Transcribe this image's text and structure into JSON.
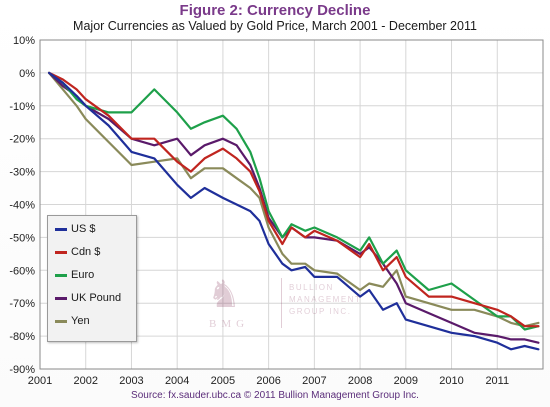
{
  "chart_data": {
    "type": "line",
    "title": "Figure 2: Currency Decline",
    "subtitle": "Major Currencies as Valued by Gold Price, March 2001 - December 2011",
    "source": "Source: fx.sauder.ubc.ca © 2011 Bullion Management Group Inc.",
    "xlim": [
      2001,
      2012
    ],
    "ylim": [
      -90,
      10
    ],
    "x_ticks": [
      "2001",
      "2002",
      "2003",
      "2004",
      "2005",
      "2006",
      "2007",
      "2008",
      "2009",
      "2010",
      "2011"
    ],
    "y_ticks": [
      "10%",
      "0%",
      "-10%",
      "-20%",
      "-30%",
      "-40%",
      "-50%",
      "-60%",
      "-70%",
      "-80%",
      "-90%"
    ],
    "grid": true,
    "legend_position": "lower-left",
    "series": [
      {
        "name": "US $",
        "color": "#1f2f9a",
        "x": [
          2001.2,
          2001.5,
          2001.8,
          2002.0,
          2002.5,
          2003.0,
          2003.5,
          2004.0,
          2004.3,
          2004.6,
          2005.0,
          2005.3,
          2005.6,
          2005.8,
          2006.0,
          2006.3,
          2006.5,
          2006.8,
          2007.0,
          2007.5,
          2008.0,
          2008.2,
          2008.5,
          2008.8,
          2009.0,
          2009.5,
          2010.0,
          2010.5,
          2011.0,
          2011.3,
          2011.6,
          2011.9
        ],
        "y": [
          0,
          -3,
          -7,
          -10,
          -16,
          -24,
          -26,
          -34,
          -38,
          -35,
          -38,
          -40,
          -42,
          -45,
          -52,
          -58,
          -60,
          -59,
          -62,
          -62,
          -68,
          -66,
          -72,
          -70,
          -75,
          -77,
          -79,
          -80,
          -82,
          -84,
          -83,
          -84
        ]
      },
      {
        "name": "Cdn $",
        "color": "#c0251f",
        "x": [
          2001.2,
          2001.5,
          2001.8,
          2002.0,
          2002.5,
          2003.0,
          2003.5,
          2004.0,
          2004.3,
          2004.6,
          2005.0,
          2005.3,
          2005.6,
          2005.8,
          2006.0,
          2006.3,
          2006.5,
          2006.8,
          2007.0,
          2007.5,
          2008.0,
          2008.2,
          2008.5,
          2008.8,
          2009.0,
          2009.5,
          2010.0,
          2010.5,
          2011.0,
          2011.3,
          2011.6,
          2011.9
        ],
        "y": [
          0,
          -2,
          -5,
          -8,
          -13,
          -20,
          -20,
          -27,
          -30,
          -26,
          -23,
          -26,
          -30,
          -36,
          -45,
          -52,
          -47,
          -50,
          -48,
          -51,
          -56,
          -52,
          -60,
          -56,
          -62,
          -68,
          -68,
          -70,
          -72,
          -74,
          -77,
          -77
        ]
      },
      {
        "name": "Euro",
        "color": "#1ea04a",
        "x": [
          2001.2,
          2001.5,
          2001.8,
          2002.0,
          2002.5,
          2003.0,
          2003.5,
          2004.0,
          2004.3,
          2004.6,
          2005.0,
          2005.3,
          2005.6,
          2005.8,
          2006.0,
          2006.3,
          2006.5,
          2006.8,
          2007.0,
          2007.5,
          2008.0,
          2008.2,
          2008.5,
          2008.8,
          2009.0,
          2009.5,
          2010.0,
          2010.5,
          2011.0,
          2011.3,
          2011.6,
          2011.9
        ],
        "y": [
          0,
          -3,
          -8,
          -10,
          -12,
          -12,
          -5,
          -12,
          -17,
          -15,
          -13,
          -17,
          -24,
          -32,
          -42,
          -50,
          -46,
          -48,
          -47,
          -50,
          -54,
          -50,
          -58,
          -54,
          -60,
          -66,
          -64,
          -69,
          -74,
          -74,
          -78,
          -77
        ]
      },
      {
        "name": "UK Pound",
        "color": "#5a1a6a",
        "x": [
          2001.2,
          2001.5,
          2001.8,
          2002.0,
          2002.5,
          2003.0,
          2003.5,
          2004.0,
          2004.3,
          2004.6,
          2005.0,
          2005.3,
          2005.6,
          2005.8,
          2006.0,
          2006.3,
          2006.5,
          2006.8,
          2007.0,
          2007.5,
          2008.0,
          2008.2,
          2008.5,
          2008.8,
          2009.0,
          2009.5,
          2010.0,
          2010.5,
          2011.0,
          2011.3,
          2011.6,
          2011.9
        ],
        "y": [
          0,
          -4,
          -7,
          -10,
          -14,
          -20,
          -22,
          -20,
          -25,
          -22,
          -20,
          -22,
          -28,
          -35,
          -44,
          -50,
          -47,
          -50,
          -50,
          -51,
          -55,
          -53,
          -58,
          -64,
          -70,
          -73,
          -76,
          -79,
          -80,
          -81,
          -81,
          -82
        ]
      },
      {
        "name": "Yen",
        "color": "#8a8a5a",
        "x": [
          2001.2,
          2001.5,
          2001.8,
          2002.0,
          2002.5,
          2003.0,
          2003.5,
          2004.0,
          2004.3,
          2004.6,
          2005.0,
          2005.3,
          2005.6,
          2005.8,
          2006.0,
          2006.3,
          2006.5,
          2006.8,
          2007.0,
          2007.5,
          2008.0,
          2008.2,
          2008.5,
          2008.8,
          2009.0,
          2009.5,
          2010.0,
          2010.5,
          2011.0,
          2011.3,
          2011.6,
          2011.9
        ],
        "y": [
          0,
          -5,
          -10,
          -14,
          -21,
          -28,
          -27,
          -26,
          -32,
          -29,
          -29,
          -32,
          -35,
          -38,
          -47,
          -55,
          -58,
          -58,
          -60,
          -61,
          -66,
          -64,
          -65,
          -60,
          -68,
          -70,
          -72,
          -72,
          -74,
          -76,
          -77,
          -76
        ]
      }
    ]
  },
  "watermark": {
    "mark": "♞",
    "letters": "BMG",
    "company": "BULLION MANAGEMENT GROUP INC."
  }
}
